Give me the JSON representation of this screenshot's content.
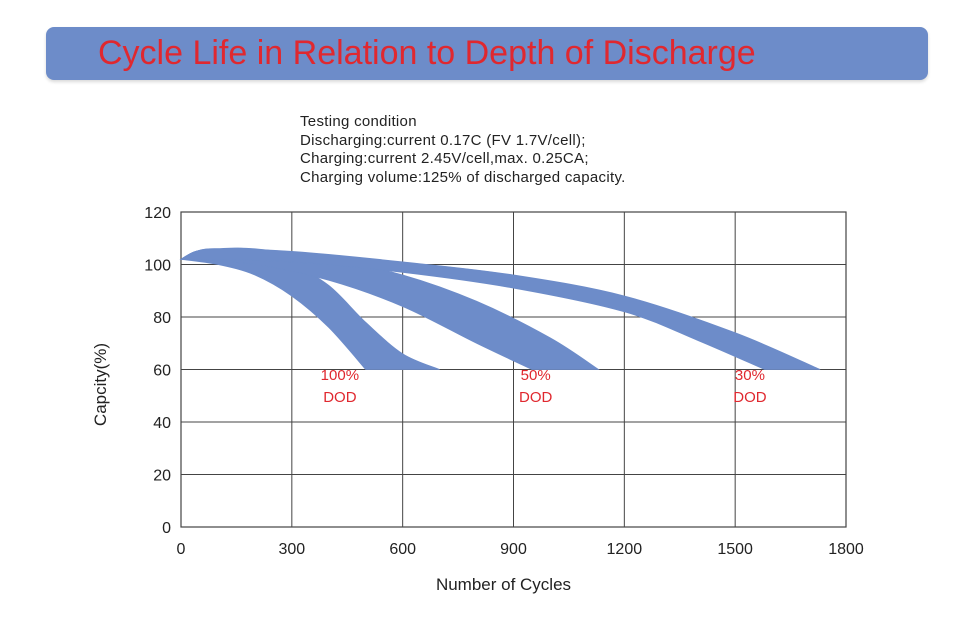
{
  "title": "Cycle Life in Relation to Depth of Discharge",
  "testing_condition": [
    "Testing condition",
    "Discharging:current 0.17C (FV 1.7V/cell);",
    "Charging:current 2.45V/cell,max. 0.25CA;",
    "Charging volume:125% of discharged capacity."
  ],
  "colors": {
    "banner": "#6d8cc9",
    "title_text": "#e0282f",
    "band_fill": "#6d8cc9",
    "label_text": "#e0282f",
    "grid": "#444444"
  },
  "chart_data": {
    "type": "area",
    "xlabel": "Number of Cycles",
    "ylabel": "Capcity(%)",
    "xlim": [
      0,
      1800
    ],
    "ylim": [
      0,
      120
    ],
    "x_ticks": [
      0,
      300,
      600,
      900,
      1200,
      1500,
      1800
    ],
    "y_ticks": [
      0,
      20,
      40,
      60,
      80,
      100,
      120
    ],
    "grid": true,
    "series": [
      {
        "name_lines": [
          "100%",
          "DOD"
        ],
        "upper": [
          [
            0,
            102
          ],
          [
            40,
            105
          ],
          [
            100,
            106
          ],
          [
            200,
            104
          ],
          [
            300,
            100
          ],
          [
            400,
            92
          ],
          [
            500,
            78
          ],
          [
            600,
            66
          ],
          [
            700,
            60
          ]
        ],
        "lower": [
          [
            0,
            102
          ],
          [
            100,
            100
          ],
          [
            200,
            96
          ],
          [
            300,
            88
          ],
          [
            400,
            76
          ],
          [
            500,
            60
          ]
        ],
        "label_at": [
          430,
          56
        ]
      },
      {
        "name_lines": [
          "50%",
          "DOD"
        ],
        "upper": [
          [
            0,
            102
          ],
          [
            40,
            105
          ],
          [
            100,
            106
          ],
          [
            200,
            106
          ],
          [
            400,
            102
          ],
          [
            600,
            96
          ],
          [
            800,
            86
          ],
          [
            1000,
            72
          ],
          [
            1130,
            60
          ]
        ],
        "lower": [
          [
            0,
            102
          ],
          [
            200,
            100
          ],
          [
            400,
            94
          ],
          [
            600,
            84
          ],
          [
            800,
            70
          ],
          [
            950,
            60
          ]
        ],
        "label_at": [
          960,
          56
        ]
      },
      {
        "name_lines": [
          "30%",
          "DOD"
        ],
        "upper": [
          [
            0,
            102
          ],
          [
            40,
            105
          ],
          [
            100,
            106
          ],
          [
            300,
            105
          ],
          [
            600,
            101
          ],
          [
            900,
            96
          ],
          [
            1200,
            88
          ],
          [
            1500,
            74
          ],
          [
            1730,
            60
          ]
        ],
        "lower": [
          [
            0,
            102
          ],
          [
            300,
            101
          ],
          [
            600,
            97
          ],
          [
            900,
            91
          ],
          [
            1200,
            82
          ],
          [
            1400,
            71
          ],
          [
            1580,
            60
          ]
        ],
        "label_at": [
          1540,
          56
        ]
      }
    ]
  }
}
